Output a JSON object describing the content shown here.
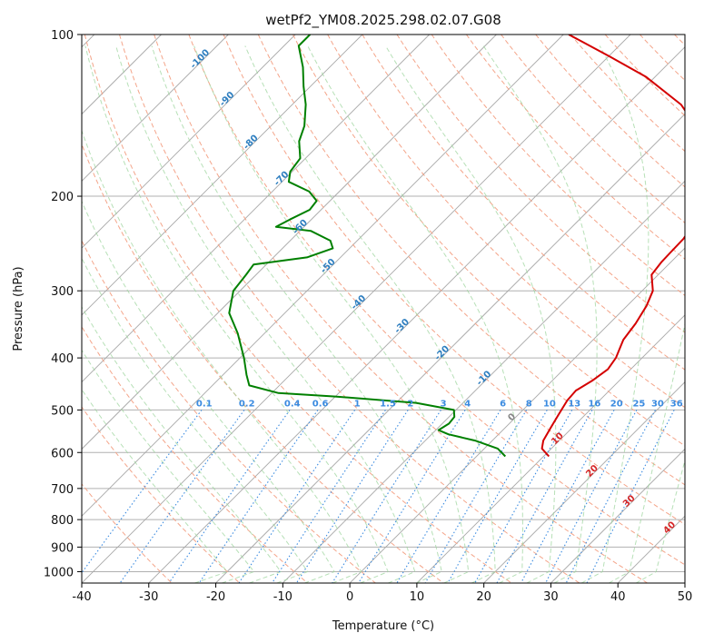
{
  "chart_data": {
    "type": "skew-t",
    "title": "wetPf2_YM08.2025.298.02.07.G08",
    "xlabel": "Temperature (°C)",
    "ylabel": "Pressure (hPa)",
    "xlim": [
      -40,
      50
    ],
    "ylim": [
      1050,
      100
    ],
    "y_scale": "log",
    "x_ticks": [
      -40,
      -30,
      -20,
      -10,
      0,
      10,
      20,
      30,
      40,
      50
    ],
    "y_ticks": [
      100,
      200,
      300,
      400,
      500,
      600,
      700,
      800,
      900,
      1000
    ],
    "grid": true,
    "series": [
      {
        "color": "#d40000",
        "points": [
          [
            610,
            10.8
          ],
          [
            590,
            8.6
          ],
          [
            570,
            7.6
          ],
          [
            540,
            6.8
          ],
          [
            510,
            6.0
          ],
          [
            480,
            5.2
          ],
          [
            460,
            5.0
          ],
          [
            440,
            6.0
          ],
          [
            420,
            6.6
          ],
          [
            400,
            6.1
          ],
          [
            370,
            4.5
          ],
          [
            345,
            3.9
          ],
          [
            320,
            2.9
          ],
          [
            300,
            1.6
          ],
          [
            280,
            -1.0
          ],
          [
            265,
            -1.4
          ],
          [
            255,
            -1.5
          ],
          [
            240,
            -1.6
          ],
          [
            225,
            -2.3
          ],
          [
            210,
            -3.4
          ],
          [
            195,
            -5.4
          ],
          [
            180,
            -8.0
          ],
          [
            165,
            -11.4
          ],
          [
            150,
            -15.8
          ],
          [
            135,
            -22.0
          ],
          [
            120,
            -31.3
          ],
          [
            110,
            -39.7
          ],
          [
            100,
            -49.2
          ]
        ]
      },
      {
        "color": "#008000",
        "points": [
          [
            610,
            4.3
          ],
          [
            590,
            2.0
          ],
          [
            570,
            -2.6
          ],
          [
            555,
            -7.5
          ],
          [
            545,
            -9.6
          ],
          [
            530,
            -9.0
          ],
          [
            515,
            -9.2
          ],
          [
            500,
            -10.3
          ],
          [
            485,
            -17.0
          ],
          [
            472,
            -30.0
          ],
          [
            465,
            -39.0
          ],
          [
            450,
            -44.5
          ],
          [
            430,
            -46.5
          ],
          [
            400,
            -49.4
          ],
          [
            360,
            -54.0
          ],
          [
            330,
            -58.3
          ],
          [
            300,
            -61.0
          ],
          [
            280,
            -61.5
          ],
          [
            268,
            -61.9
          ],
          [
            260,
            -55.0
          ],
          [
            250,
            -52.5
          ],
          [
            242,
            -54.0
          ],
          [
            232,
            -58.4
          ],
          [
            228,
            -64.2
          ],
          [
            221,
            -63.2
          ],
          [
            212,
            -61.7
          ],
          [
            204,
            -62.0
          ],
          [
            196,
            -64.5
          ],
          [
            188,
            -69.0
          ],
          [
            180,
            -70.3
          ],
          [
            170,
            -70.8
          ],
          [
            158,
            -73.5
          ],
          [
            148,
            -75.0
          ],
          [
            135,
            -78.0
          ],
          [
            125,
            -81.0
          ],
          [
            115,
            -84.0
          ],
          [
            105,
            -87.8
          ],
          [
            100,
            -87.8
          ]
        ]
      }
    ],
    "isotherm_labels": [
      "-100",
      "-90",
      "-80",
      "-70",
      "-60",
      "-50",
      "-40",
      "-30",
      "-20",
      "-10"
    ],
    "mixing_ratio_labels": [
      "0.1",
      "0.2",
      "0.4",
      "0.6",
      "1",
      "1.5",
      "2",
      "3",
      "4",
      "6",
      "8",
      "10",
      "13",
      "16",
      "20",
      "25",
      "30",
      "36"
    ],
    "wet_bulb_labels": [
      "0",
      "10",
      "20",
      "30",
      "40"
    ]
  }
}
